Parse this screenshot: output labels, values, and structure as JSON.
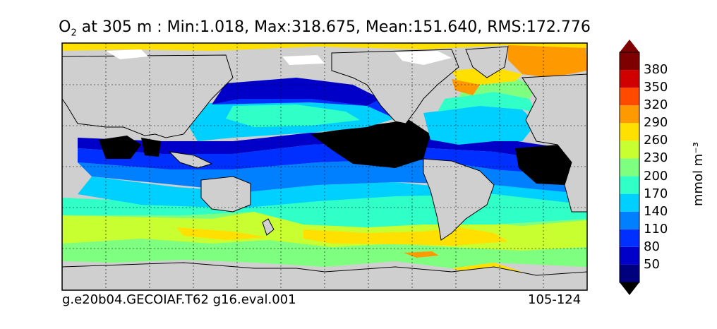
{
  "title": {
    "variable": "O",
    "subscript": "2",
    "text": "at 305 m : Min:1.018, Max:318.675, Mean:151.640, RMS:172.776"
  },
  "footer": {
    "left": "g.e20b04.GECOIAF.T62 g16.eval.001",
    "right": "105-124"
  },
  "colorbar": {
    "unit": "mmol m⁻³",
    "ticks": [
      "50",
      "80",
      "110",
      "140",
      "170",
      "200",
      "230",
      "260",
      "290",
      "320",
      "350",
      "380"
    ],
    "colors": [
      "#00007f",
      "#0000c8",
      "#0030ff",
      "#0080ff",
      "#00d0ff",
      "#30ffc8",
      "#7fff7f",
      "#c8ff30",
      "#ffe000",
      "#ff9900",
      "#ff4a00",
      "#d00000",
      "#7f0000"
    ]
  },
  "chart_data": {
    "type": "heatmap",
    "title": "O2 at 305 m : Min:1.018, Max:318.675, Mean:151.640, RMS:172.776",
    "levels": [
      50,
      80,
      110,
      140,
      170,
      200,
      230,
      260,
      290,
      320,
      350,
      380
    ],
    "unit": "mmol m-3",
    "stats": {
      "min": 1.018,
      "max": 318.675,
      "mean": 151.64,
      "rms": 172.776
    },
    "grid": true,
    "colorbar_position": "right"
  }
}
